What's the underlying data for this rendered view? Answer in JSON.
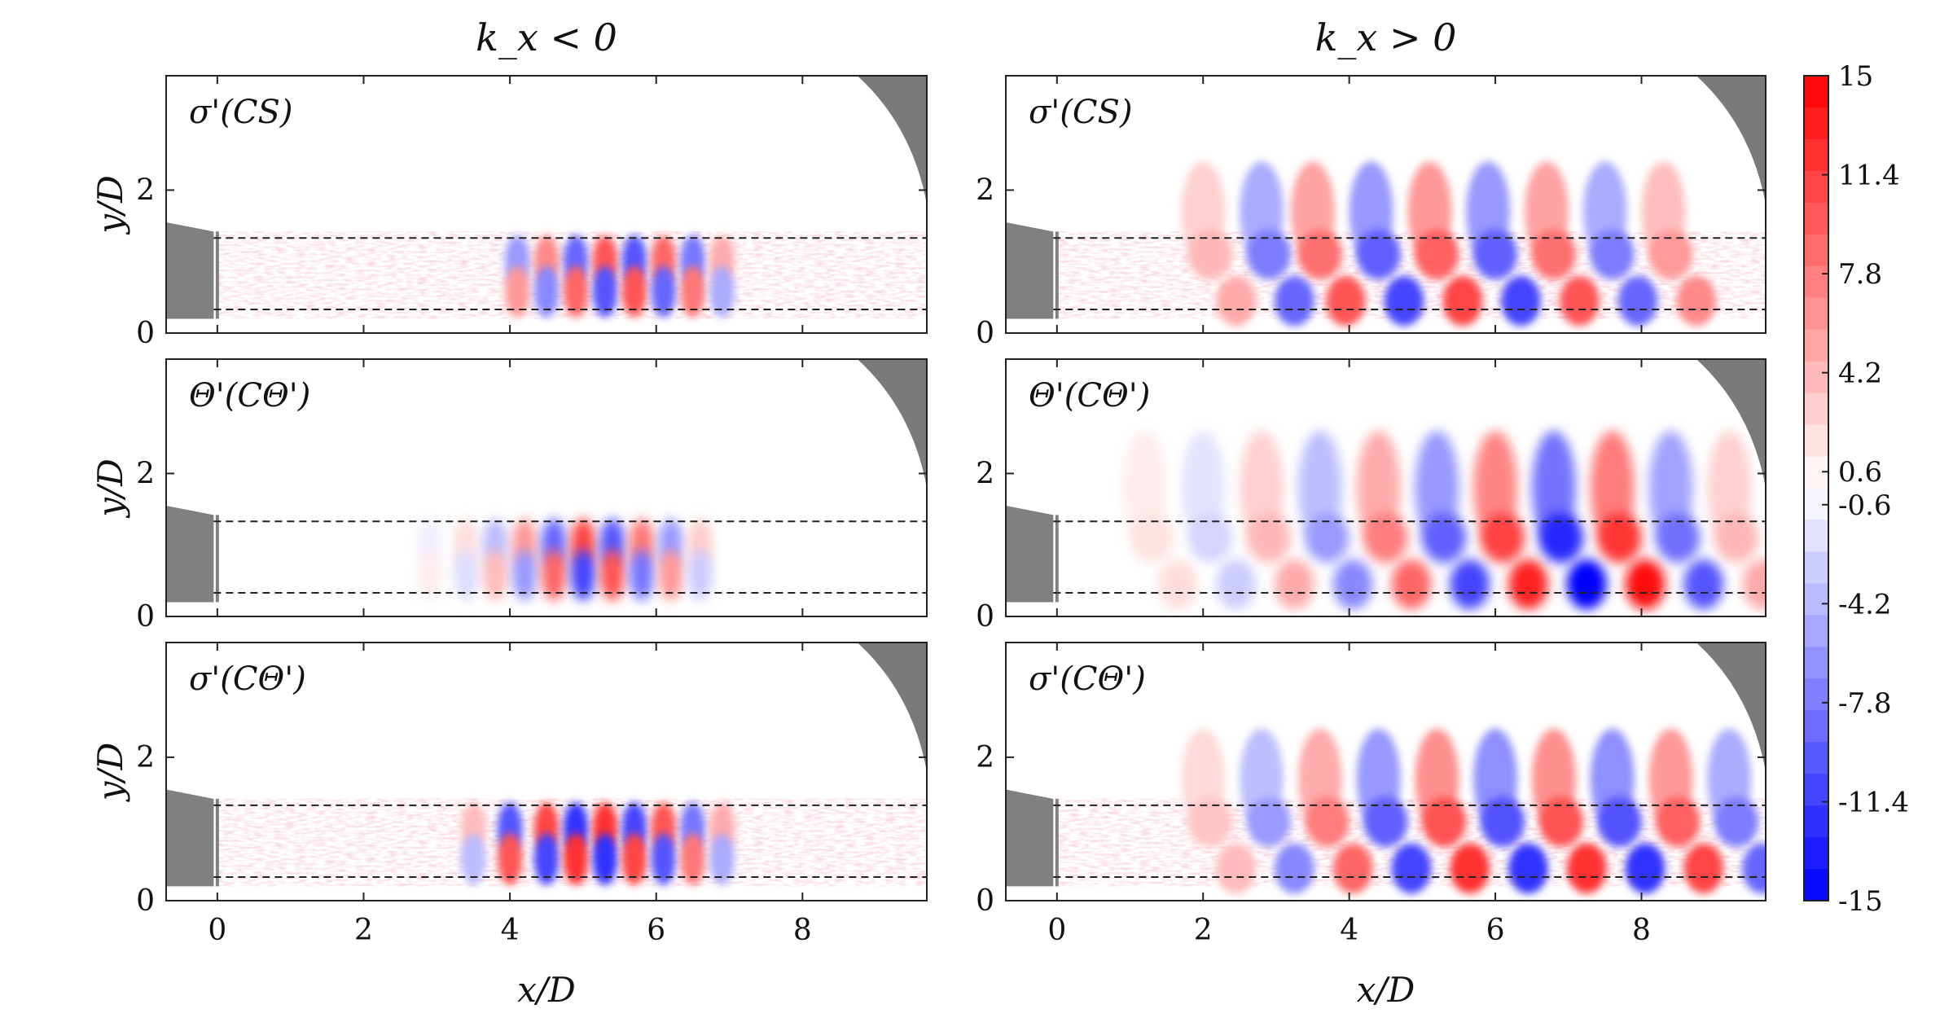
{
  "chart_data": {
    "type": "heatmap",
    "column_titles": [
      "k_x < 0",
      "k_x > 0"
    ],
    "xlabel": "x/D",
    "ylabel": "y/D",
    "xlim": [
      -0.7,
      9.7
    ],
    "ylim": [
      0,
      3.6
    ],
    "xticks": [
      "0",
      "2",
      "4",
      "6",
      "8"
    ],
    "yticks": [
      "0",
      "2"
    ],
    "dashed_lines_y": [
      0.33,
      1.33
    ],
    "colorbar": {
      "range": [
        -15,
        15
      ],
      "tick_labels": [
        "15",
        "11.4",
        "7.8",
        "4.2",
        "0.6",
        "-0.6",
        "-4.2",
        "-7.8",
        "-11.4",
        "-15"
      ],
      "colormap": {
        "negative": "#0000ff",
        "zero": "#ffffff",
        "positive": "#ff0000"
      }
    },
    "panels": [
      {
        "row": 1,
        "column": "k_x < 0",
        "label": "σ'(CS)",
        "kind": "noisy",
        "structures": [
          {
            "x": 4.1,
            "y_upper": -6,
            "y_lower": 6
          },
          {
            "x": 4.5,
            "y_upper": 7,
            "y_lower": -7
          },
          {
            "x": 4.9,
            "y_upper": -9,
            "y_lower": 9
          },
          {
            "x": 5.3,
            "y_upper": 10,
            "y_lower": -10
          },
          {
            "x": 5.7,
            "y_upper": -10,
            "y_lower": 10
          },
          {
            "x": 6.1,
            "y_upper": 9,
            "y_lower": -9
          },
          {
            "x": 6.5,
            "y_upper": -8,
            "y_lower": 8
          },
          {
            "x": 6.9,
            "y_upper": 5,
            "y_lower": -5
          }
        ]
      },
      {
        "row": 1,
        "column": "k_x > 0",
        "label": "σ'(CS)",
        "kind": "noisy",
        "structures": [
          {
            "x": 2.0,
            "v": 5
          },
          {
            "x": 2.8,
            "v": -9
          },
          {
            "x": 3.5,
            "v": 10
          },
          {
            "x": 4.3,
            "v": -11
          },
          {
            "x": 5.1,
            "v": 11
          },
          {
            "x": 5.9,
            "v": -11
          },
          {
            "x": 6.7,
            "v": 10
          },
          {
            "x": 7.5,
            "v": -9
          },
          {
            "x": 8.3,
            "v": 7
          }
        ]
      },
      {
        "row": 2,
        "column": "k_x < 0",
        "label": "Θ'(CΘ')",
        "kind": "smooth",
        "structures": [
          {
            "x": 2.9,
            "y_upper": -1,
            "y_lower": 1
          },
          {
            "x": 3.4,
            "y_upper": 2,
            "y_lower": -2
          },
          {
            "x": 3.8,
            "y_upper": -4,
            "y_lower": 4
          },
          {
            "x": 4.2,
            "y_upper": 6,
            "y_lower": -6
          },
          {
            "x": 4.6,
            "y_upper": -9,
            "y_lower": 9
          },
          {
            "x": 5.0,
            "y_upper": 11,
            "y_lower": -11
          },
          {
            "x": 5.4,
            "y_upper": -10,
            "y_lower": 10
          },
          {
            "x": 5.8,
            "y_upper": 8,
            "y_lower": -8
          },
          {
            "x": 6.2,
            "y_upper": -6,
            "y_lower": 6
          },
          {
            "x": 6.6,
            "y_upper": 3,
            "y_lower": -3
          }
        ]
      },
      {
        "row": 2,
        "column": "k_x > 0",
        "label": "Θ'(CΘ')",
        "kind": "smooth",
        "structures": [
          {
            "x": 1.2,
            "v": 2
          },
          {
            "x": 2.0,
            "v": -3
          },
          {
            "x": 2.8,
            "v": 5
          },
          {
            "x": 3.6,
            "v": -7
          },
          {
            "x": 4.4,
            "v": 9
          },
          {
            "x": 5.2,
            "v": -11
          },
          {
            "x": 6.0,
            "v": 13
          },
          {
            "x": 6.8,
            "v": -15
          },
          {
            "x": 7.6,
            "v": 14
          },
          {
            "x": 8.4,
            "v": -10
          },
          {
            "x": 9.2,
            "v": 5
          }
        ]
      },
      {
        "row": 3,
        "column": "k_x < 0",
        "label": "σ'(CΘ')",
        "kind": "noisy",
        "structures": [
          {
            "x": 3.5,
            "y_upper": 4,
            "y_lower": -4
          },
          {
            "x": 4.0,
            "y_upper": -10,
            "y_lower": 10
          },
          {
            "x": 4.5,
            "y_upper": 11,
            "y_lower": -11
          },
          {
            "x": 4.9,
            "y_upper": -12,
            "y_lower": 12
          },
          {
            "x": 5.3,
            "y_upper": 12,
            "y_lower": -12
          },
          {
            "x": 5.7,
            "y_upper": -11,
            "y_lower": 11
          },
          {
            "x": 6.1,
            "y_upper": 10,
            "y_lower": -10
          },
          {
            "x": 6.5,
            "y_upper": -8,
            "y_lower": 8
          },
          {
            "x": 6.9,
            "y_upper": 5,
            "y_lower": -5
          }
        ]
      },
      {
        "row": 3,
        "column": "k_x > 0",
        "label": "σ'(CΘ')",
        "kind": "noisy",
        "structures": [
          {
            "x": 2.0,
            "v": 4
          },
          {
            "x": 2.8,
            "v": -7
          },
          {
            "x": 3.6,
            "v": 9
          },
          {
            "x": 4.4,
            "v": -11
          },
          {
            "x": 5.2,
            "v": 12
          },
          {
            "x": 6.0,
            "v": -12
          },
          {
            "x": 6.8,
            "v": 12
          },
          {
            "x": 7.6,
            "v": -12
          },
          {
            "x": 8.4,
            "v": 11
          },
          {
            "x": 9.2,
            "v": -9
          }
        ]
      }
    ]
  }
}
